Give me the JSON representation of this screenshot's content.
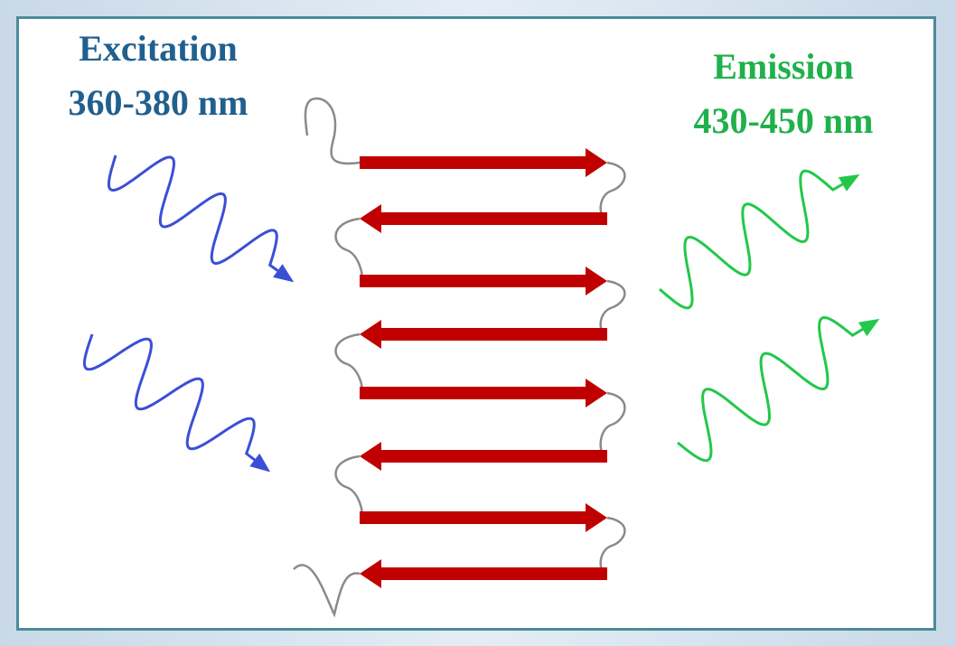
{
  "excitation": {
    "label": "Excitation",
    "range": "360-380 nm"
  },
  "emission": {
    "label": "Emission",
    "range": "430-450 nm"
  }
}
